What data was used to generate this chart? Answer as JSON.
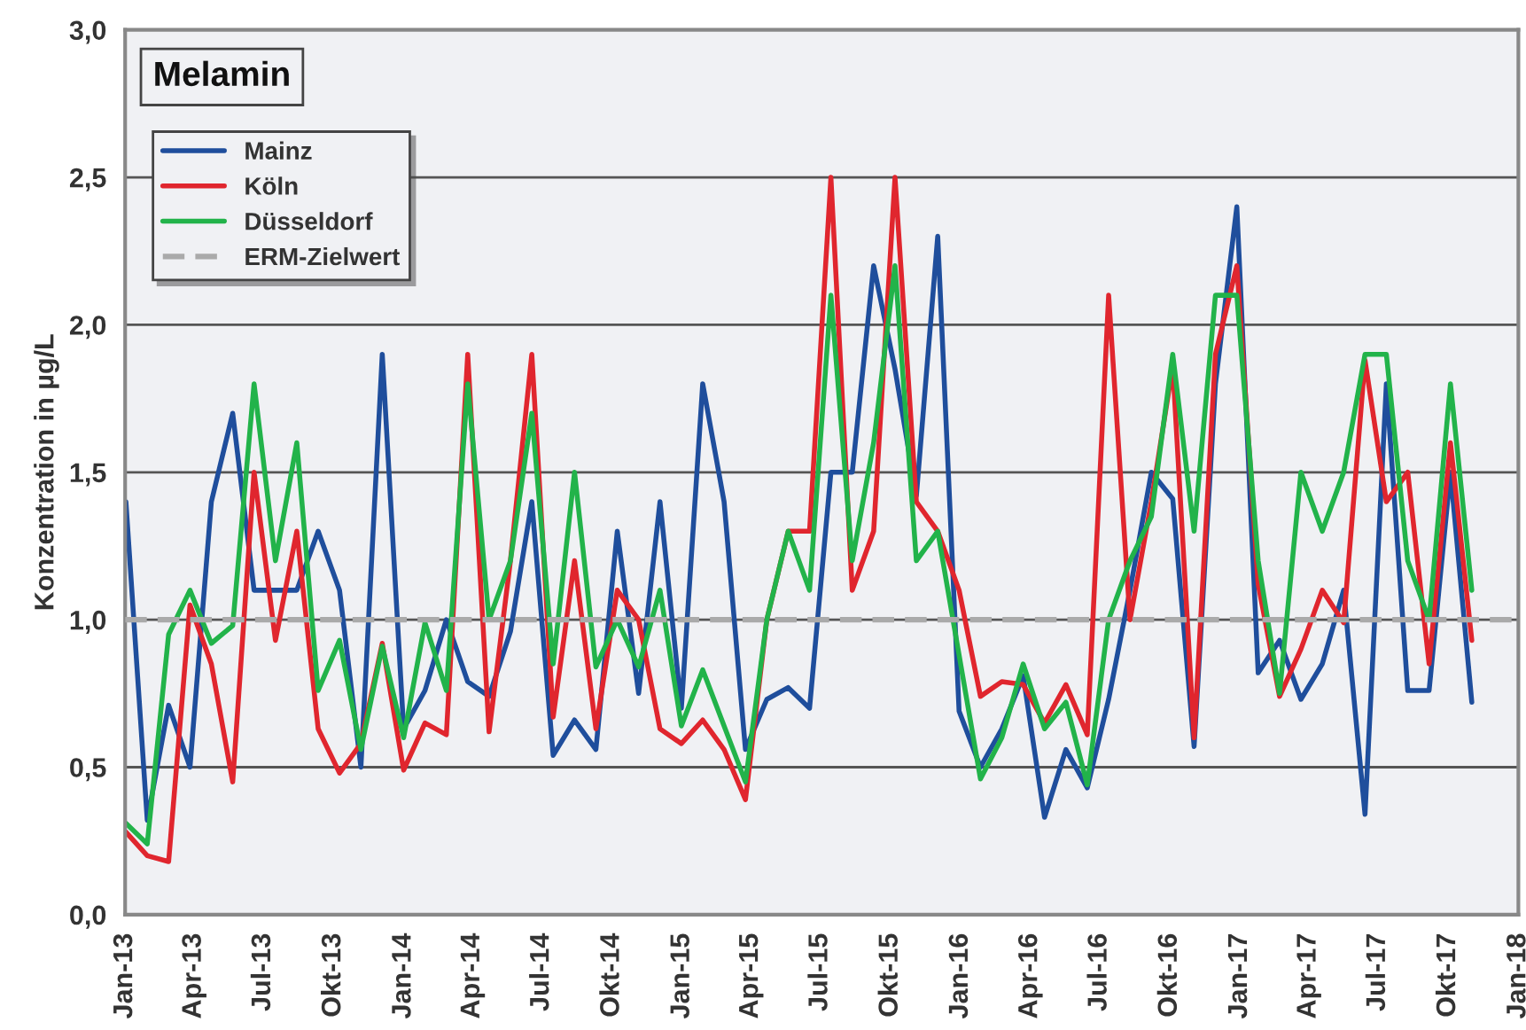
{
  "chart_data": {
    "type": "line",
    "title": "Melamin",
    "ylabel": "Konzentration in µg/L",
    "x": [
      "2013-01-02",
      "2013-01-30",
      "2013-02-27",
      "2013-03-27",
      "2013-04-24",
      "2013-05-22",
      "2013-06-19",
      "2013-07-17",
      "2013-08-14",
      "2013-09-11",
      "2013-10-09",
      "2013-11-06",
      "2013-12-04",
      "2014-01-01",
      "2014-01-29",
      "2014-02-26",
      "2014-03-26",
      "2014-04-23",
      "2014-05-21",
      "2014-06-18",
      "2014-07-16",
      "2014-08-13",
      "2014-09-10",
      "2014-10-08",
      "2014-11-05",
      "2014-12-03",
      "2014-12-31",
      "2015-01-28",
      "2015-02-25",
      "2015-03-25",
      "2015-04-22",
      "2015-05-20",
      "2015-06-17",
      "2015-07-15",
      "2015-08-12",
      "2015-09-09",
      "2015-10-07",
      "2015-11-04",
      "2015-12-02",
      "2015-12-30",
      "2016-01-27",
      "2016-02-24",
      "2016-03-23",
      "2016-04-20",
      "2016-05-18",
      "2016-06-15",
      "2016-07-13",
      "2016-08-10",
      "2016-09-07",
      "2016-10-05",
      "2016-11-02",
      "2016-11-30",
      "2016-12-28",
      "2017-01-25",
      "2017-02-22",
      "2017-03-22",
      "2017-04-19",
      "2017-05-17",
      "2017-06-14",
      "2017-07-12",
      "2017-08-09",
      "2017-09-06",
      "2017-10-04",
      "2017-11-01"
    ],
    "series": [
      {
        "name": "Mainz",
        "color": "#1f4e9c",
        "values": [
          1.4,
          0.32,
          0.71,
          0.5,
          1.4,
          1.7,
          1.1,
          1.1,
          1.1,
          1.3,
          1.1,
          0.5,
          1.9,
          0.63,
          0.76,
          1.0,
          0.79,
          0.74,
          0.96,
          1.4,
          0.54,
          0.66,
          0.56,
          1.3,
          0.75,
          1.4,
          0.7,
          1.8,
          1.4,
          0.56,
          0.73,
          0.77,
          0.7,
          1.5,
          1.5,
          2.2,
          1.85,
          1.42,
          2.3,
          0.69,
          0.5,
          0.63,
          0.81,
          0.33,
          0.56,
          0.43,
          0.73,
          1.1,
          1.5,
          1.41,
          0.57,
          1.8,
          2.4,
          0.82,
          0.93,
          0.73,
          0.85,
          1.1,
          0.34,
          1.8,
          0.76,
          0.76,
          1.5,
          0.72
        ]
      },
      {
        "name": "Köln",
        "color": "#e0262e",
        "values": [
          0.28,
          0.2,
          0.18,
          1.05,
          0.85,
          0.45,
          1.5,
          0.93,
          1.3,
          0.63,
          0.48,
          0.58,
          0.92,
          0.49,
          0.65,
          0.61,
          1.9,
          0.62,
          1.2,
          1.9,
          0.67,
          1.2,
          0.63,
          1.1,
          1.0,
          0.63,
          0.58,
          0.66,
          0.56,
          0.39,
          1.0,
          1.3,
          1.3,
          2.5,
          1.1,
          1.3,
          2.5,
          1.4,
          1.3,
          1.1,
          0.74,
          0.79,
          0.78,
          0.65,
          0.78,
          0.61,
          2.1,
          1.0,
          1.4,
          1.86,
          0.6,
          1.9,
          2.2,
          1.12,
          0.74,
          0.9,
          1.1,
          0.99,
          1.88,
          1.4,
          1.5,
          0.85,
          1.6,
          0.93
        ]
      },
      {
        "name": "Düsseldorf",
        "color": "#22b34a",
        "values": [
          0.31,
          0.24,
          0.95,
          1.1,
          0.92,
          0.98,
          1.8,
          1.2,
          1.6,
          0.76,
          0.93,
          0.56,
          0.91,
          0.6,
          0.99,
          0.76,
          1.8,
          1.0,
          1.2,
          1.7,
          0.85,
          1.5,
          0.84,
          1.0,
          0.84,
          1.1,
          0.64,
          0.83,
          0.64,
          0.45,
          1.0,
          1.3,
          1.1,
          2.1,
          1.2,
          1.6,
          2.2,
          1.2,
          1.3,
          0.88,
          0.46,
          0.6,
          0.85,
          0.63,
          0.72,
          0.44,
          1.0,
          1.2,
          1.35,
          1.9,
          1.3,
          2.1,
          2.1,
          1.2,
          0.75,
          1.5,
          1.3,
          1.5,
          1.9,
          1.9,
          1.2,
          1.0,
          1.8,
          1.1
        ]
      }
    ],
    "ref_lines": [
      {
        "axis": "y",
        "value": 1.0,
        "label": "ERM-Zielwert",
        "color": "#aaaaaa",
        "line_style": "dashed"
      }
    ],
    "xlim": [
      "2013-01-01",
      "2018-01-01"
    ],
    "xticks": [
      {
        "value": "2013-01-01",
        "label": "Jan-13"
      },
      {
        "value": "2013-04-01",
        "label": "Apr-13"
      },
      {
        "value": "2013-07-01",
        "label": "Jul-13"
      },
      {
        "value": "2013-10-01",
        "label": "Okt-13"
      },
      {
        "value": "2014-01-01",
        "label": "Jan-14"
      },
      {
        "value": "2014-04-01",
        "label": "Apr-14"
      },
      {
        "value": "2014-07-01",
        "label": "Jul-14"
      },
      {
        "value": "2014-10-01",
        "label": "Okt-14"
      },
      {
        "value": "2015-01-01",
        "label": "Jan-15"
      },
      {
        "value": "2015-04-01",
        "label": "Apr-15"
      },
      {
        "value": "2015-07-01",
        "label": "Jul-15"
      },
      {
        "value": "2015-10-01",
        "label": "Okt-15"
      },
      {
        "value": "2016-01-01",
        "label": "Jan-16"
      },
      {
        "value": "2016-04-01",
        "label": "Apr-16"
      },
      {
        "value": "2016-07-01",
        "label": "Jul-16"
      },
      {
        "value": "2016-10-01",
        "label": "Okt-16"
      },
      {
        "value": "2017-01-01",
        "label": "Jan-17"
      },
      {
        "value": "2017-04-01",
        "label": "Apr-17"
      },
      {
        "value": "2017-07-01",
        "label": "Jul-17"
      },
      {
        "value": "2017-10-01",
        "label": "Okt-17"
      },
      {
        "value": "2018-01-01",
        "label": "Jan-18"
      }
    ],
    "ylim": [
      0,
      3
    ],
    "yticks": [
      {
        "value": 0,
        "label": "0,0"
      },
      {
        "value": 0.5,
        "label": "0,5"
      },
      {
        "value": 1,
        "label": "1,0"
      },
      {
        "value": 1.5,
        "label": "1,5"
      },
      {
        "value": 2,
        "label": "2,0"
      },
      {
        "value": 2.5,
        "label": "2,5"
      },
      {
        "value": 3,
        "label": "3,0"
      }
    ],
    "grid": "y",
    "legend": "top left",
    "marker": "none",
    "line_style": "solid"
  }
}
